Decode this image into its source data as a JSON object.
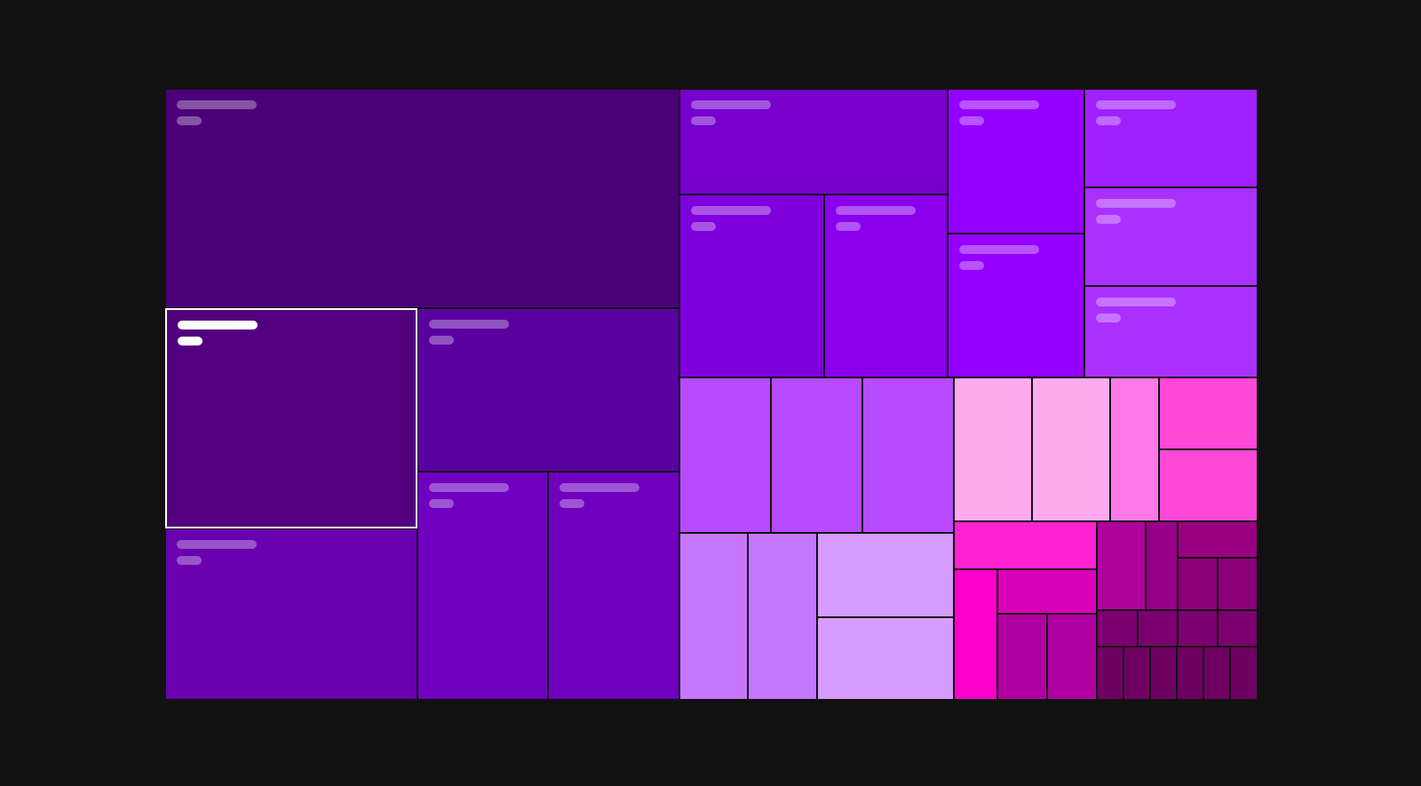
{
  "chart_data": {
    "type": "treemap",
    "selected_index": 1,
    "cells": [
      {
        "color": "#4b0079",
        "label_placeholder": true
      },
      {
        "color": "#520080",
        "label_placeholder": true
      },
      {
        "color": "#5a00a0",
        "label_placeholder": true
      },
      {
        "color": "#6800b0",
        "label_placeholder": true
      },
      {
        "color": "#7000c0",
        "label_placeholder": true
      },
      {
        "color": "#7000c0",
        "label_placeholder": true
      },
      {
        "color": "#7700cc",
        "label_placeholder": true
      },
      {
        "color": "#8000dd",
        "label_placeholder": true
      },
      {
        "color": "#8a00ee",
        "label_placeholder": true
      },
      {
        "color": "#9400ff",
        "label_placeholder": true
      },
      {
        "color": "#9400ff",
        "label_placeholder": true
      },
      {
        "color": "#a020ff",
        "label_placeholder": true
      },
      {
        "color": "#aa30ff",
        "label_placeholder": true
      },
      {
        "color": "#aa30ff",
        "label_placeholder": true
      },
      {
        "color": "#b84aff",
        "label_placeholder": false
      },
      {
        "color": "#b84aff",
        "label_placeholder": false
      },
      {
        "color": "#b84aff",
        "label_placeholder": false
      },
      {
        "color": "#c677ff",
        "label_placeholder": false
      },
      {
        "color": "#c677ff",
        "label_placeholder": false
      },
      {
        "color": "#d69cff",
        "label_placeholder": false
      },
      {
        "color": "#d69cff",
        "label_placeholder": false
      },
      {
        "color": "#ffaaee",
        "label_placeholder": false
      },
      {
        "color": "#ffaaee",
        "label_placeholder": false
      },
      {
        "color": "#ff7ae8",
        "label_placeholder": false
      },
      {
        "color": "#ff48d8",
        "label_placeholder": false
      },
      {
        "color": "#ff48d8",
        "label_placeholder": false
      },
      {
        "color": "#ff22d0",
        "label_placeholder": false
      },
      {
        "color": "#ff00cc",
        "label_placeholder": false
      },
      {
        "color": "#d800b8",
        "label_placeholder": false
      },
      {
        "color": "#b000a0",
        "label_placeholder": false
      },
      {
        "color": "#b000a0",
        "label_placeholder": false
      },
      {
        "color": "#b0009c",
        "label_placeholder": false
      },
      {
        "color": "#980088",
        "label_placeholder": false
      },
      {
        "color": "#980080",
        "label_placeholder": false
      },
      {
        "color": "#8a0078",
        "label_placeholder": false
      },
      {
        "color": "#8a0078",
        "label_placeholder": false
      },
      {
        "color": "#7c0070",
        "label_placeholder": false
      },
      {
        "color": "#7c0070",
        "label_placeholder": false
      },
      {
        "color": "#7c0070",
        "label_placeholder": false
      },
      {
        "color": "#7c0070",
        "label_placeholder": false
      },
      {
        "color": "#6e0062",
        "label_placeholder": false
      },
      {
        "color": "#6e0062",
        "label_placeholder": false
      },
      {
        "color": "#6e0062",
        "label_placeholder": false
      },
      {
        "color": "#6e0062",
        "label_placeholder": false
      },
      {
        "color": "#6e0062",
        "label_placeholder": false
      },
      {
        "color": "#6e0062",
        "label_placeholder": false
      }
    ]
  }
}
